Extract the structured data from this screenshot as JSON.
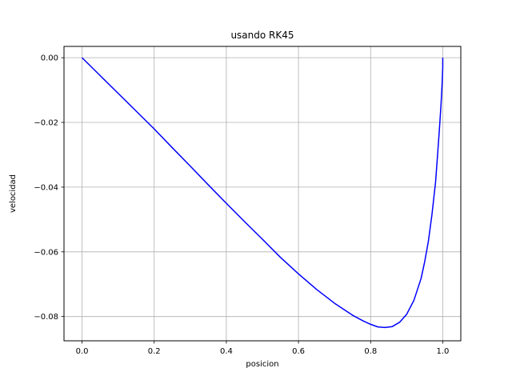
{
  "chart_data": {
    "type": "line",
    "title": "usando RK45",
    "xlabel": "posicion",
    "ylabel": "velocidad",
    "xlim": [
      -0.05,
      1.05
    ],
    "ylim": [
      -0.0875,
      0.0035
    ],
    "xticks": [
      0.0,
      0.2,
      0.4,
      0.6,
      0.8,
      1.0
    ],
    "xtick_labels": [
      "0.0",
      "0.2",
      "0.4",
      "0.6",
      "0.8",
      "1.0"
    ],
    "yticks": [
      0.0,
      -0.02,
      -0.04,
      -0.06,
      -0.08
    ],
    "ytick_labels": [
      "0.00",
      "−0.02",
      "−0.04",
      "−0.06",
      "−0.08"
    ],
    "grid": true,
    "series": [
      {
        "color": "#0000ff",
        "x": [
          0.0,
          0.05,
          0.1,
          0.15,
          0.2,
          0.25,
          0.3,
          0.35,
          0.4,
          0.45,
          0.5,
          0.55,
          0.6,
          0.65,
          0.7,
          0.75,
          0.78,
          0.8,
          0.82,
          0.84,
          0.86,
          0.88,
          0.9,
          0.92,
          0.94,
          0.95,
          0.96,
          0.97,
          0.98,
          0.985,
          0.99,
          0.995,
          0.998,
          1.0,
          1.0
        ],
        "y": [
          0.0,
          -0.0055,
          -0.011,
          -0.0165,
          -0.022,
          -0.0278,
          -0.0335,
          -0.0393,
          -0.045,
          -0.0506,
          -0.0561,
          -0.0617,
          -0.0668,
          -0.0716,
          -0.0759,
          -0.0796,
          -0.0814,
          -0.0824,
          -0.0832,
          -0.0834,
          -0.0831,
          -0.0818,
          -0.0793,
          -0.075,
          -0.0682,
          -0.063,
          -0.0568,
          -0.0485,
          -0.0385,
          -0.031,
          -0.0232,
          -0.0148,
          -0.0085,
          -0.003,
          0.0
        ]
      }
    ]
  }
}
